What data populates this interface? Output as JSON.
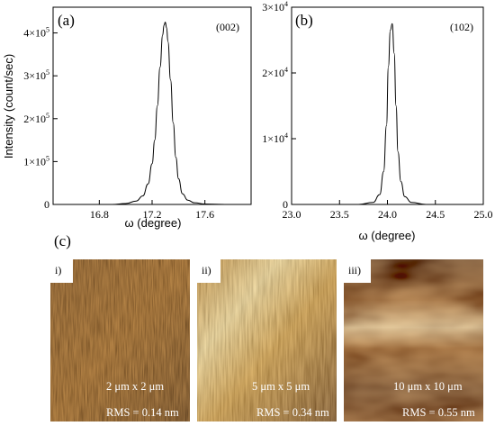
{
  "chart_data": [
    {
      "type": "line",
      "panel_label": "(a)",
      "peak_label": "(002)",
      "xlabel": "ω (degree)",
      "ylabel": "Intensity (count/sec)",
      "xlim": [
        16.45,
        17.95
      ],
      "ylim": [
        0,
        460000
      ],
      "x_ticks": [
        16.8,
        17.2,
        17.6
      ],
      "x_tick_labels": [
        "16.8",
        "17.2",
        "17.6"
      ],
      "y_ticks": [
        0,
        100000,
        200000,
        300000,
        400000
      ],
      "y_tick_labels": [
        {
          "mantissa": "0",
          "exp": ""
        },
        {
          "mantissa": "1×10",
          "exp": "5"
        },
        {
          "mantissa": "2×10",
          "exp": "5"
        },
        {
          "mantissa": "3×10",
          "exp": "5"
        },
        {
          "mantissa": "4×10",
          "exp": "5"
        }
      ],
      "x": [
        16.45,
        16.6,
        16.75,
        16.9,
        17.0,
        17.08,
        17.13,
        17.17,
        17.2,
        17.22,
        17.24,
        17.26,
        17.28,
        17.29,
        17.3,
        17.31,
        17.32,
        17.34,
        17.36,
        17.38,
        17.4,
        17.43,
        17.47,
        17.52,
        17.6,
        17.75,
        17.95
      ],
      "y": [
        0,
        0,
        0,
        0,
        2000,
        8000,
        20000,
        48000,
        95000,
        150000,
        230000,
        320000,
        395000,
        418000,
        425000,
        412000,
        380000,
        290000,
        190000,
        110000,
        60000,
        25000,
        10000,
        4000,
        1000,
        0,
        0
      ]
    },
    {
      "type": "line",
      "panel_label": "(b)",
      "peak_label": "(102)",
      "xlabel": "ω (degree)",
      "ylabel": "",
      "xlim": [
        23.0,
        25.0
      ],
      "ylim": [
        0,
        30000
      ],
      "x_ticks": [
        23.0,
        23.5,
        24.0,
        24.5,
        25.0
      ],
      "x_tick_labels": [
        "23.0",
        "23.5",
        "24.0",
        "24.5",
        "25.0"
      ],
      "y_ticks": [
        0,
        10000,
        20000,
        30000
      ],
      "y_tick_labels": [
        {
          "mantissa": "0",
          "exp": ""
        },
        {
          "mantissa": "1×10",
          "exp": "4"
        },
        {
          "mantissa": "2×10",
          "exp": "4"
        },
        {
          "mantissa": "3×10",
          "exp": "4"
        }
      ],
      "x": [
        23.0,
        23.4,
        23.7,
        23.85,
        23.92,
        23.96,
        23.99,
        24.01,
        24.03,
        24.05,
        24.07,
        24.09,
        24.11,
        24.14,
        24.18,
        24.25,
        24.4,
        24.7,
        25.0
      ],
      "y": [
        0,
        0,
        0,
        300,
        1500,
        5000,
        12000,
        21000,
        26500,
        27500,
        23000,
        15000,
        8000,
        3500,
        1200,
        300,
        0,
        0,
        0
      ]
    }
  ],
  "afm": {
    "panel_label": "(c)",
    "images": [
      {
        "roman": "i)",
        "scan_size": "2 μm x 2 μm",
        "rms": "RMS = 0.14 nm"
      },
      {
        "roman": "ii)",
        "scan_size": "5 μm x 5 μm",
        "rms": "RMS = 0.34 nm"
      },
      {
        "roman": "iii)",
        "scan_size": "10 μm x 10 μm",
        "rms": "RMS = 0.55 nm"
      }
    ]
  },
  "colors": {
    "axis": "#000000",
    "curve": "#000000",
    "afm_dark": "#3a1a05",
    "afm_mid": "#9a5a18",
    "afm_light": "#f4e6b8"
  }
}
